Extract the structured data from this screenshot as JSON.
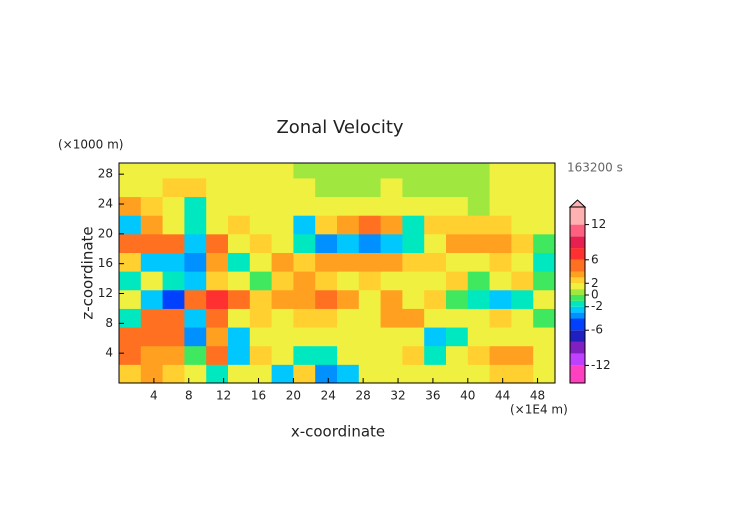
{
  "chart_data": {
    "type": "contour",
    "title": "Zonal Velocity",
    "xlabel": "x-coordinate",
    "ylabel": "z-coordinate",
    "y_unit": "(×1000 m)",
    "x_unit": "(×1E4 m)",
    "time_label": "163200 s",
    "xlim": [
      0,
      50
    ],
    "ylim": [
      0,
      29.5
    ],
    "xticks": [
      4,
      8,
      12,
      16,
      20,
      24,
      28,
      32,
      36,
      40,
      44,
      48
    ],
    "yticks": [
      4,
      8,
      12,
      16,
      20,
      24,
      28
    ],
    "x": [
      1.25,
      3.75,
      6.25,
      8.75,
      11.25,
      13.75,
      16.25,
      18.75,
      21.25,
      23.75,
      26.25,
      28.75,
      31.25,
      33.75,
      36.25,
      38.75,
      41.25,
      43.75,
      46.25,
      48.75
    ],
    "y": [
      1.25,
      3.75,
      6.25,
      8.75,
      11.25,
      13.75,
      16.25,
      18.75,
      21.25,
      23.75,
      26.25,
      28.75
    ],
    "values": [
      [
        2,
        3,
        2,
        1,
        -2,
        1,
        1,
        -3,
        2,
        -4,
        -3,
        1,
        1,
        1,
        1,
        1,
        1,
        2,
        2,
        1
      ],
      [
        4,
        3,
        3,
        -1,
        4,
        -3,
        2,
        1,
        -2,
        -2,
        1,
        1,
        1,
        2,
        -2,
        1,
        2,
        3,
        3,
        1
      ],
      [
        5,
        5,
        4,
        -4,
        3,
        -3,
        1,
        1,
        1,
        1,
        1,
        1,
        1,
        1,
        -3,
        -2,
        1,
        1,
        1,
        1
      ],
      [
        -2,
        4,
        4,
        -3,
        4,
        1,
        2,
        1,
        2,
        2,
        1,
        1,
        3,
        3,
        1,
        1,
        1,
        2,
        1,
        -1
      ],
      [
        1,
        -3,
        -5,
        4,
        6,
        4,
        2,
        3,
        3,
        4,
        3,
        1,
        3,
        1,
        2,
        -1,
        -2,
        -3,
        -2,
        1
      ],
      [
        -2,
        1,
        -2,
        -3,
        2,
        1,
        -1,
        2,
        3,
        2,
        1,
        2,
        1,
        1,
        1,
        2,
        -1,
        1,
        2,
        -1
      ],
      [
        2,
        -3,
        -3,
        -4,
        3,
        -2,
        1,
        3,
        2,
        3,
        3,
        3,
        3,
        2,
        2,
        1,
        1,
        2,
        1,
        -2
      ],
      [
        4,
        5,
        5,
        -3,
        5,
        1,
        2,
        1,
        -2,
        -4,
        -3,
        -4,
        -3,
        -2,
        1,
        3,
        3,
        3,
        2,
        -1
      ],
      [
        -3,
        3,
        1,
        -2,
        1,
        2,
        1,
        1,
        -3,
        2,
        3,
        4,
        3,
        -2,
        2,
        2,
        2,
        2,
        1,
        1
      ],
      [
        3,
        2,
        1,
        -2,
        1,
        1,
        1,
        1,
        1,
        1,
        1,
        1,
        1,
        1,
        1,
        1,
        0,
        1,
        1,
        1
      ],
      [
        1,
        1,
        2,
        2,
        1,
        1,
        1,
        1,
        1,
        0,
        0,
        0,
        1,
        0,
        0,
        0,
        0,
        1,
        1,
        1
      ],
      [
        1,
        1,
        1,
        1,
        1,
        1,
        1,
        1,
        0,
        0,
        0,
        0,
        0,
        0,
        0,
        0,
        0,
        1,
        1,
        1
      ]
    ],
    "clim": [
      -15,
      15
    ],
    "cticks": [
      12,
      6,
      2,
      0,
      -2,
      -6,
      -12
    ],
    "levels": [
      -15,
      -12,
      -10,
      -8,
      -6,
      -4,
      -3,
      -2,
      -1,
      0,
      1,
      2,
      3,
      4,
      6,
      8,
      10,
      12,
      15
    ],
    "colors": [
      "#ff40c0",
      "#c040ff",
      "#8020c0",
      "#2020c0",
      "#0040ff",
      "#0090ff",
      "#00c8ff",
      "#00e8c0",
      "#40e860",
      "#a0e840",
      "#f0f040",
      "#ffd030",
      "#ffa020",
      "#ff7020",
      "#ff3030",
      "#e82050",
      "#ff6080",
      "#ffb0b0"
    ]
  }
}
